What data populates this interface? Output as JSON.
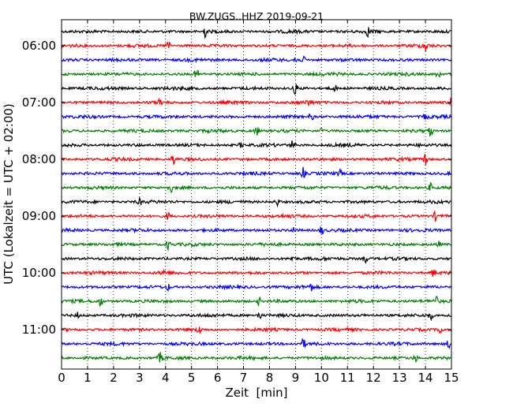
{
  "chart_data": {
    "type": "line",
    "title": "BW.ZUGS..HHZ 2019-09-21",
    "xlabel": "Zeit  [min]",
    "ylabel": "UTC (Lokalzeit = UTC + 02:00)",
    "xlim": [
      0,
      15
    ],
    "x_ticks": [
      "0",
      "1",
      "2",
      "3",
      "4",
      "5",
      "6",
      "7",
      "8",
      "9",
      "10",
      "11",
      "12",
      "13",
      "14",
      "15"
    ],
    "y_tick_labels": [
      "06:00",
      "07:00",
      "08:00",
      "09:00",
      "10:00",
      "11:00"
    ],
    "grid": true,
    "trace_colors": [
      "#000000",
      "#ff0000",
      "#0000ff",
      "#008000"
    ],
    "row_span_minutes": 15,
    "traces": [
      {
        "start": "05:45",
        "events": [
          [
            5.5,
            1.0
          ],
          [
            11.8,
            0.7
          ]
        ]
      },
      {
        "start": "06:00",
        "events": [
          [
            4.1,
            0.8
          ],
          [
            14.0,
            1.0
          ]
        ]
      },
      {
        "start": "06:15",
        "events": [
          [
            9.0,
            0.8
          ],
          [
            9.3,
            0.5
          ]
        ]
      },
      {
        "start": "06:30",
        "events": [
          [
            5.2,
            0.8
          ],
          [
            14.5,
            0.9
          ]
        ]
      },
      {
        "start": "06:45",
        "events": [
          [
            9.0,
            1.0
          ],
          [
            10.5,
            0.6
          ]
        ]
      },
      {
        "start": "07:00",
        "events": [
          [
            3.8,
            0.8
          ],
          [
            9.5,
            0.5
          ],
          [
            15.0,
            1.0
          ]
        ]
      },
      {
        "start": "07:15",
        "events": [
          [
            9.6,
            0.8
          ],
          [
            14.0,
            0.5
          ]
        ]
      },
      {
        "start": "07:30",
        "events": [
          [
            7.5,
            0.8
          ],
          [
            10.0,
            0.5
          ],
          [
            14.2,
            1.0
          ]
        ]
      },
      {
        "start": "07:45",
        "events": [
          [
            6.9,
            0.4
          ],
          [
            8.9,
            1.0
          ]
        ]
      },
      {
        "start": "08:00",
        "events": [
          [
            4.3,
            0.9
          ],
          [
            14.0,
            1.0
          ]
        ]
      },
      {
        "start": "08:15",
        "events": [
          [
            9.3,
            0.9
          ],
          [
            10.7,
            0.5
          ]
        ]
      },
      {
        "start": "08:30",
        "events": [
          [
            4.2,
            0.7
          ],
          [
            14.2,
            0.7
          ]
        ]
      },
      {
        "start": "08:45",
        "events": [
          [
            3.0,
            0.5
          ],
          [
            8.3,
            0.6
          ]
        ]
      },
      {
        "start": "09:00",
        "events": [
          [
            4.1,
            0.6
          ],
          [
            14.4,
            0.8
          ]
        ]
      },
      {
        "start": "09:15",
        "events": [
          [
            8.9,
            0.6
          ],
          [
            10.0,
            0.7
          ]
        ]
      },
      {
        "start": "09:30",
        "events": [
          [
            4.1,
            0.7
          ],
          [
            14.5,
            0.5
          ]
        ]
      },
      {
        "start": "09:45",
        "events": [
          [
            8.9,
            0.6
          ],
          [
            11.7,
            0.6
          ]
        ]
      },
      {
        "start": "10:00",
        "events": [
          [
            3.9,
            0.6
          ],
          [
            14.3,
            0.7
          ]
        ]
      },
      {
        "start": "10:15",
        "events": [
          [
            4.1,
            0.5
          ],
          [
            9.6,
            0.6
          ]
        ]
      },
      {
        "start": "10:30",
        "events": [
          [
            1.5,
            0.8
          ],
          [
            7.6,
            0.6
          ],
          [
            14.4,
            0.7
          ]
        ]
      },
      {
        "start": "10:45",
        "events": [
          [
            0.6,
            0.5
          ],
          [
            7.6,
            0.8
          ],
          [
            14.2,
            0.6
          ]
        ]
      },
      {
        "start": "11:00",
        "events": [
          [
            5.3,
            0.8
          ],
          [
            14.6,
            0.8
          ]
        ]
      },
      {
        "start": "11:15",
        "events": [
          [
            9.3,
            0.8
          ],
          [
            14.9,
            0.7
          ]
        ]
      },
      {
        "start": "11:30",
        "events": [
          [
            3.8,
            0.8
          ],
          [
            13.6,
            0.7
          ]
        ]
      }
    ]
  }
}
